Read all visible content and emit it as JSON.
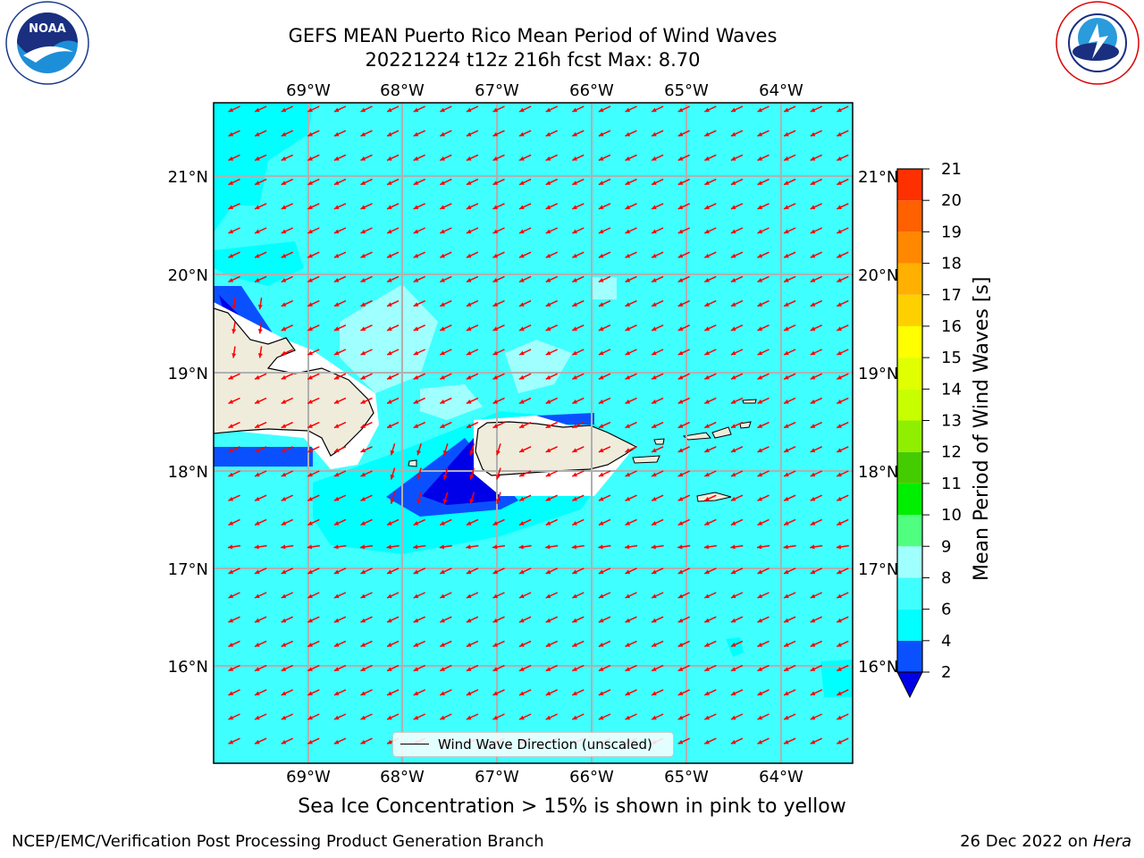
{
  "header": {
    "title_line1": "GEFS MEAN Puerto Rico Mean Period of Wind Waves",
    "title_line2": "20221224 t12z 216h fcst   Max: 8.70"
  },
  "logos": {
    "left": "NOAA",
    "left_ring": "NATIONAL OCEANIC AND ATMOSPHERIC ADMINISTRATION · U.S. DEPARTMENT OF COMMERCE",
    "right_ring": "NATIONAL WEATHER SERVICE"
  },
  "map": {
    "lon_labels": [
      "69°W",
      "68°W",
      "67°W",
      "66°W",
      "65°W",
      "64°W"
    ],
    "lat_labels": [
      "21°N",
      "20°N",
      "19°N",
      "18°N",
      "17°N",
      "16°N"
    ],
    "legend_label": "Wind Wave Direction (unscaled)",
    "arrow_color": "#ff0000",
    "background_color": "#40ffff",
    "land_color": "#efecdc"
  },
  "colorbar": {
    "label": "Mean Period of Wind Waves [s]",
    "ticks": [
      "2",
      "4",
      "6",
      "8",
      "9",
      "10",
      "11",
      "12",
      "13",
      "14",
      "15",
      "16",
      "17",
      "18",
      "19",
      "20",
      "21"
    ],
    "colors": [
      "#0b50ff",
      "#00ffff",
      "#40ffff",
      "#a0ffff",
      "#50ff80",
      "#00ee00",
      "#44cc00",
      "#90ee00",
      "#c8ff00",
      "#e0ff00",
      "#ffff00",
      "#ffd000",
      "#ffb000",
      "#ff8800",
      "#ff6000",
      "#ff3000",
      "#ff0000"
    ],
    "extend_color": "#0000e8"
  },
  "caption": "Sea Ice Concentration > 15% is shown in pink to yellow",
  "footer": {
    "left": "NCEP/EMC/Verification Post Processing Product Generation Branch",
    "right_prefix": "26 Dec 2022 on ",
    "right_host": "Hera"
  }
}
